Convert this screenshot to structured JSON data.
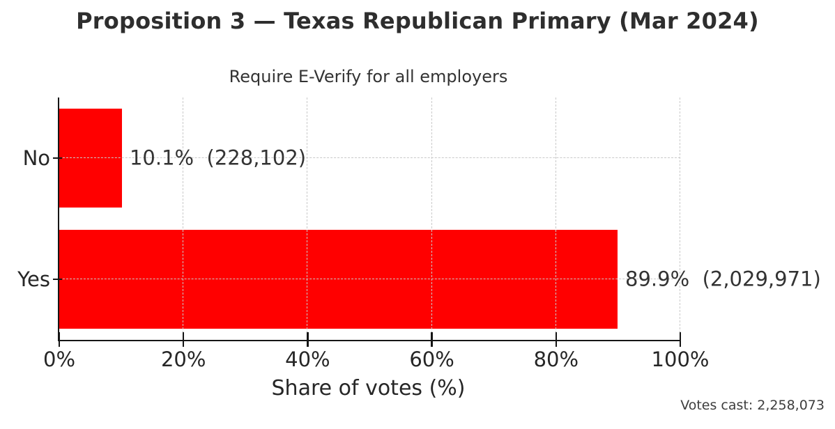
{
  "figure": {
    "title": "Proposition 3 — Texas Republican Primary (Mar 2024)",
    "footnote": "Votes cast: 2,258,073"
  },
  "chart_data": {
    "type": "bar",
    "orientation": "horizontal",
    "title": "Require E-Verify for all employers",
    "categories": [
      "No",
      "Yes"
    ],
    "values": [
      10.1,
      89.9
    ],
    "counts": [
      228102,
      2029971
    ],
    "bar_labels": [
      "10.1%  (228,102)",
      "89.9%  (2,029,971)"
    ],
    "xlabel": "Share of votes (%)",
    "ylabel": "",
    "xlim": [
      0,
      100
    ],
    "x_ticks": [
      0,
      20,
      40,
      60,
      80,
      100
    ],
    "x_tick_labels": [
      "0%",
      "20%",
      "40%",
      "60%",
      "80%",
      "100%"
    ],
    "grid": "dashed-both-axes-above-bars",
    "legend": "none",
    "bar_color": "#ff0000",
    "votes_cast_total": 2258073
  }
}
